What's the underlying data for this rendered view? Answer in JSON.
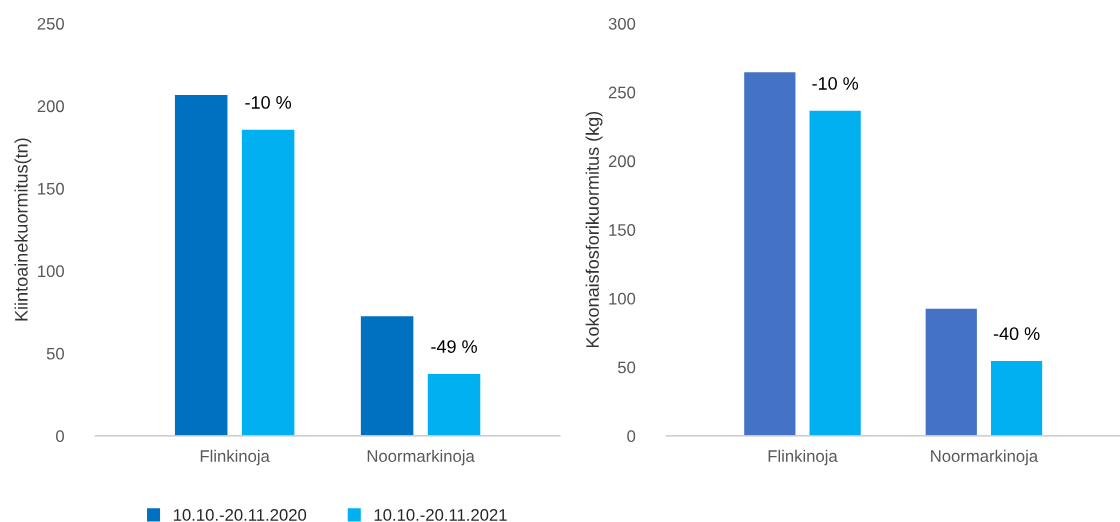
{
  "chart_data": [
    {
      "type": "bar",
      "ylabel": "Kiintoainekuormitus(tn)",
      "categories": [
        "Flinkinoja",
        "Noormarkinoja"
      ],
      "series": [
        {
          "name": "10.10.-20.11.2020",
          "color": "#0070c0",
          "values": [
            207,
            73
          ]
        },
        {
          "name": "10.10.-20.11.2021",
          "color": "#00b0f0",
          "values": [
            186,
            38
          ]
        }
      ],
      "ylim": [
        0,
        250
      ],
      "yticks": [
        0,
        50,
        100,
        150,
        200,
        250
      ],
      "grid": false,
      "legend": "bottom",
      "annotations": [
        "-10 %",
        "-49 %"
      ]
    },
    {
      "type": "bar",
      "ylabel": "Kokonaisfosforikuormitus (kg)",
      "categories": [
        "Flinkinoja",
        "Noormarkinoja"
      ],
      "series": [
        {
          "color": "#4472c4",
          "values": [
            265,
            93
          ]
        },
        {
          "color": "#00b0f0",
          "values": [
            237,
            55
          ]
        }
      ],
      "ylim": [
        0,
        300
      ],
      "yticks": [
        0,
        50,
        100,
        150,
        200,
        250,
        300
      ],
      "grid": false,
      "annotations": [
        "-10 %",
        "-40 %"
      ]
    }
  ]
}
